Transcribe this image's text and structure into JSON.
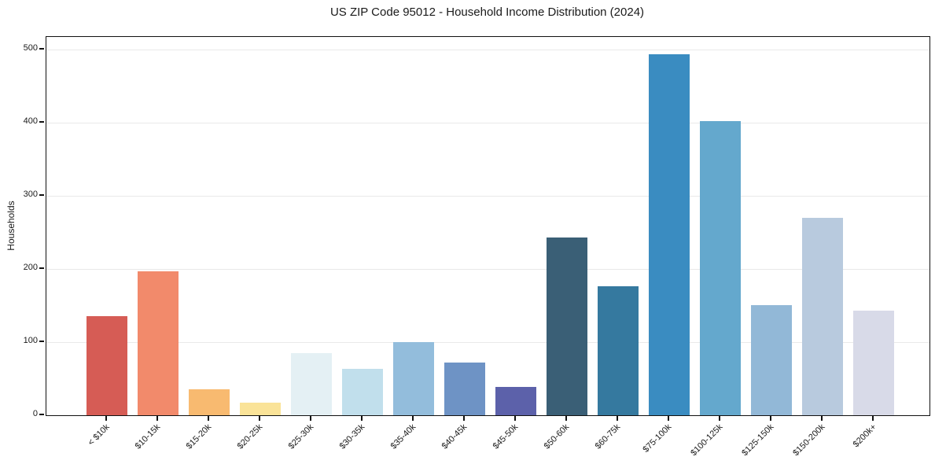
{
  "chart_data": {
    "type": "bar",
    "title": "US ZIP Code 95012 - Household Income Distribution (2024)",
    "xlabel": "",
    "ylabel": "Households",
    "categories": [
      "< $10k",
      "$10-15k",
      "$15-20k",
      "$20-25k",
      "$25-30k",
      "$30-35k",
      "$35-40k",
      "$40-45k",
      "$45-50k",
      "$50-60k",
      "$60-75k",
      "$75-100k",
      "$100-125k",
      "$125-150k",
      "$150-200k",
      "$200k+"
    ],
    "values": [
      135,
      197,
      35,
      17,
      85,
      63,
      100,
      72,
      39,
      243,
      176,
      494,
      402,
      151,
      270,
      143
    ],
    "bar_colors": [
      "#d65c55",
      "#f28a6b",
      "#f8ba70",
      "#fae398",
      "#e4f0f4",
      "#c1dfec",
      "#93bddc",
      "#6e93c5",
      "#5c61aa",
      "#3a5f76",
      "#35799f",
      "#3a8cc1",
      "#64a8cd",
      "#92b8d7",
      "#b8cade",
      "#d8dae8"
    ],
    "ylim": [
      0,
      517
    ],
    "yticks": [
      0,
      100,
      200,
      300,
      400,
      500
    ],
    "grid": "horizontal",
    "legend": "none"
  },
  "style": {
    "grid_color": "#e9e9e9",
    "spine_color": "#111111",
    "text_color": "#1a1a1a",
    "background": "#ffffff"
  }
}
